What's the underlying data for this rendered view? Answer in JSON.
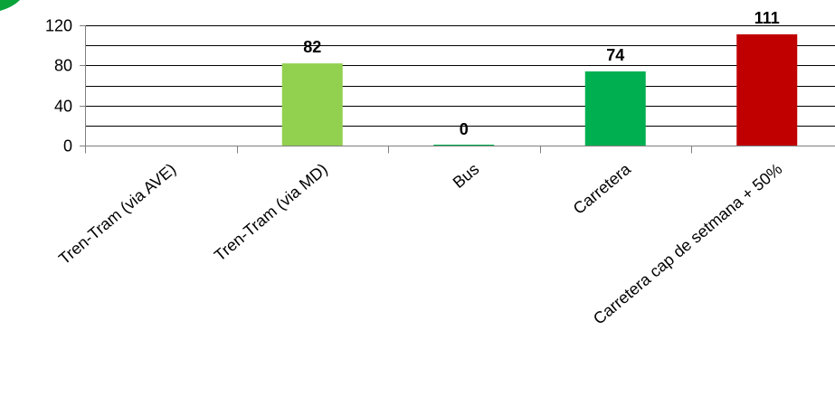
{
  "chart_data": {
    "type": "bar",
    "categories": [
      "Tren-Tram (via AVE)",
      "Tren-Tram (via MD)",
      "Bus",
      "Carretera",
      "Carretera cap de setmana + 50%"
    ],
    "values": [
      null,
      82,
      0,
      74,
      111
    ],
    "data_labels": [
      "",
      "82",
      "0",
      "74",
      "111"
    ],
    "bar_colors": [
      "#92d050",
      "#92d050",
      "#00b050",
      "#00b050",
      "#c00000"
    ],
    "ylim": [
      0,
      120
    ],
    "yticks": [
      0,
      40,
      80,
      120
    ],
    "yticks_labels": [
      "0",
      "40",
      "80",
      "120"
    ],
    "minor_gridlines": [
      20,
      60,
      100
    ],
    "grid": true,
    "legend": "none",
    "title": "",
    "xlabel": "",
    "ylabel": ""
  },
  "colors": {
    "gridline": "#000000",
    "axis": "#7f7f7f",
    "corner_mark": "#0aa33a"
  }
}
